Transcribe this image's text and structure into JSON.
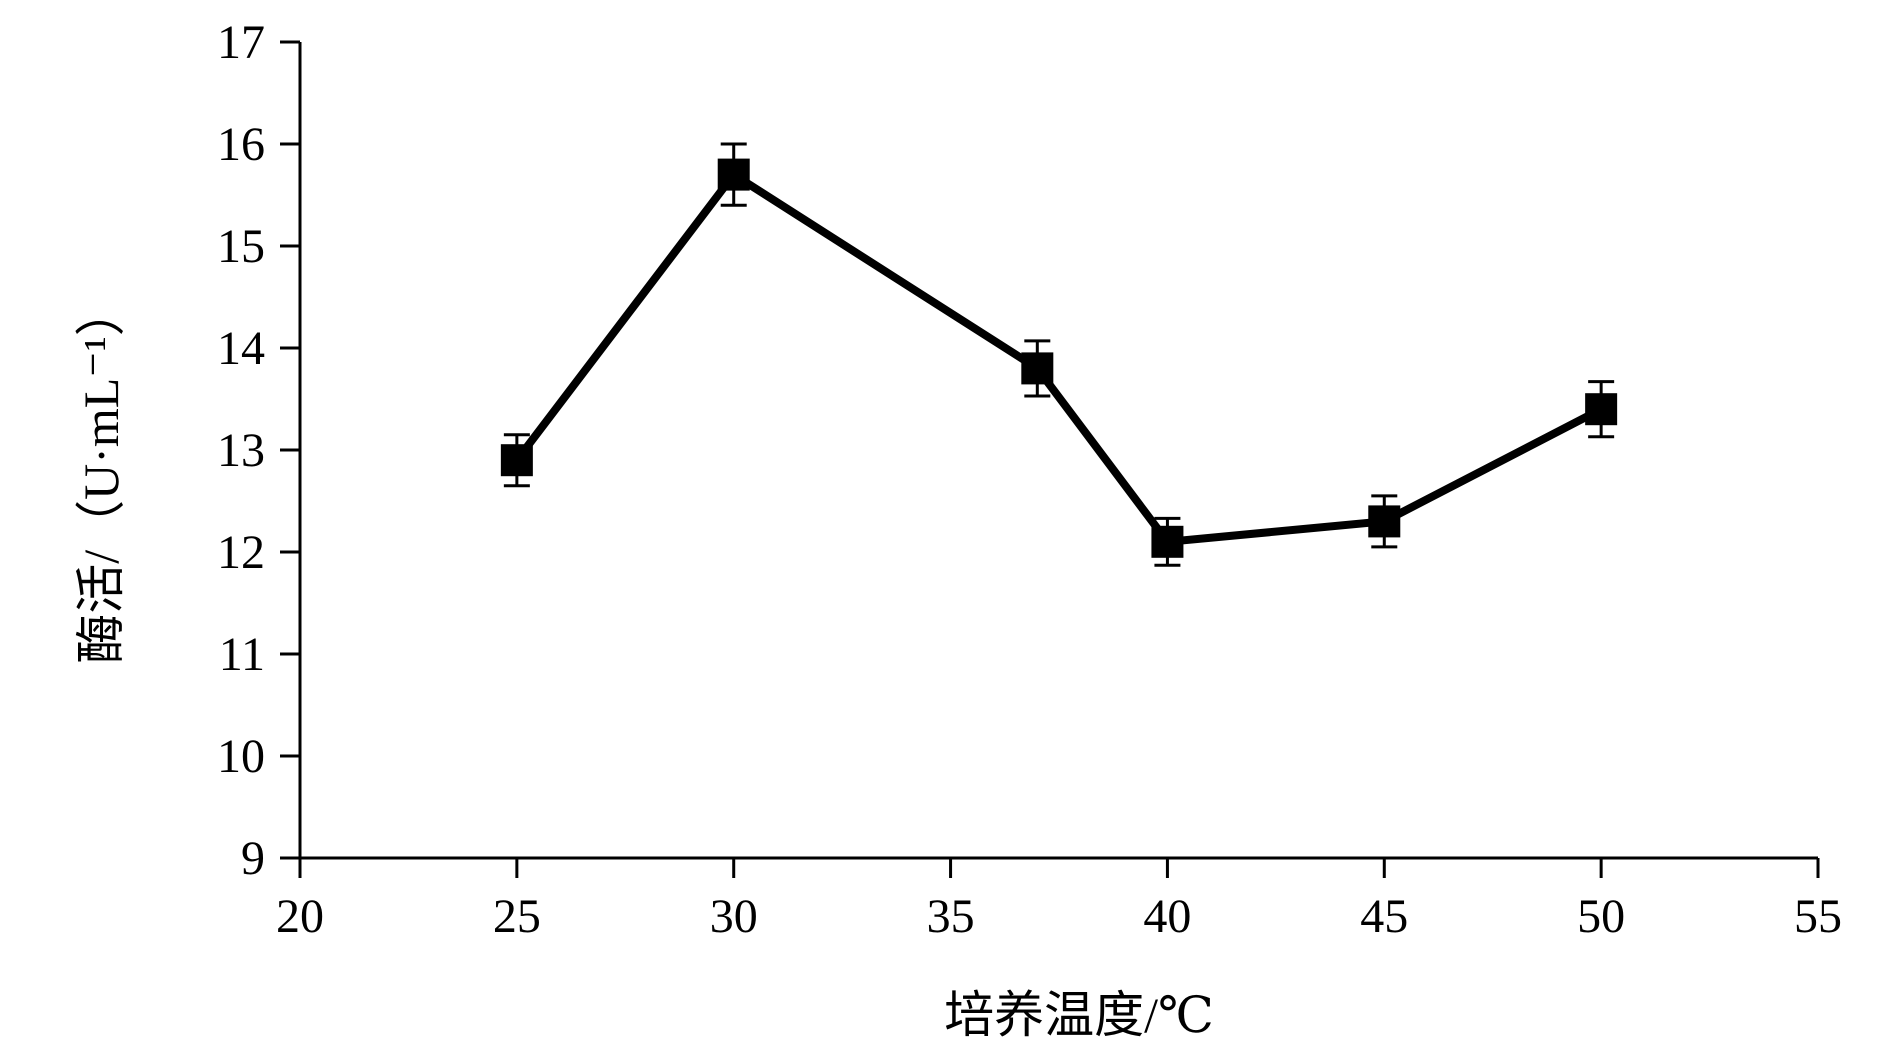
{
  "chart_data": {
    "type": "line",
    "title": "",
    "xlabel": "培养温度/℃",
    "ylabel": "酶活/（U·mL⁻¹）",
    "xlim": [
      20,
      55
    ],
    "ylim": [
      9,
      17
    ],
    "xticks": [
      20,
      25,
      30,
      35,
      40,
      45,
      50,
      55
    ],
    "yticks": [
      9,
      10,
      11,
      12,
      13,
      14,
      15,
      16,
      17
    ],
    "grid": false,
    "legend": "none",
    "marker": "square",
    "color": "#000000",
    "series": [
      {
        "x": [
          25,
          30,
          37,
          40,
          45,
          50
        ],
        "y": [
          12.9,
          15.7,
          13.8,
          12.1,
          12.3,
          13.4
        ],
        "error": [
          0.25,
          0.3,
          0.27,
          0.23,
          0.25,
          0.27
        ]
      }
    ]
  }
}
